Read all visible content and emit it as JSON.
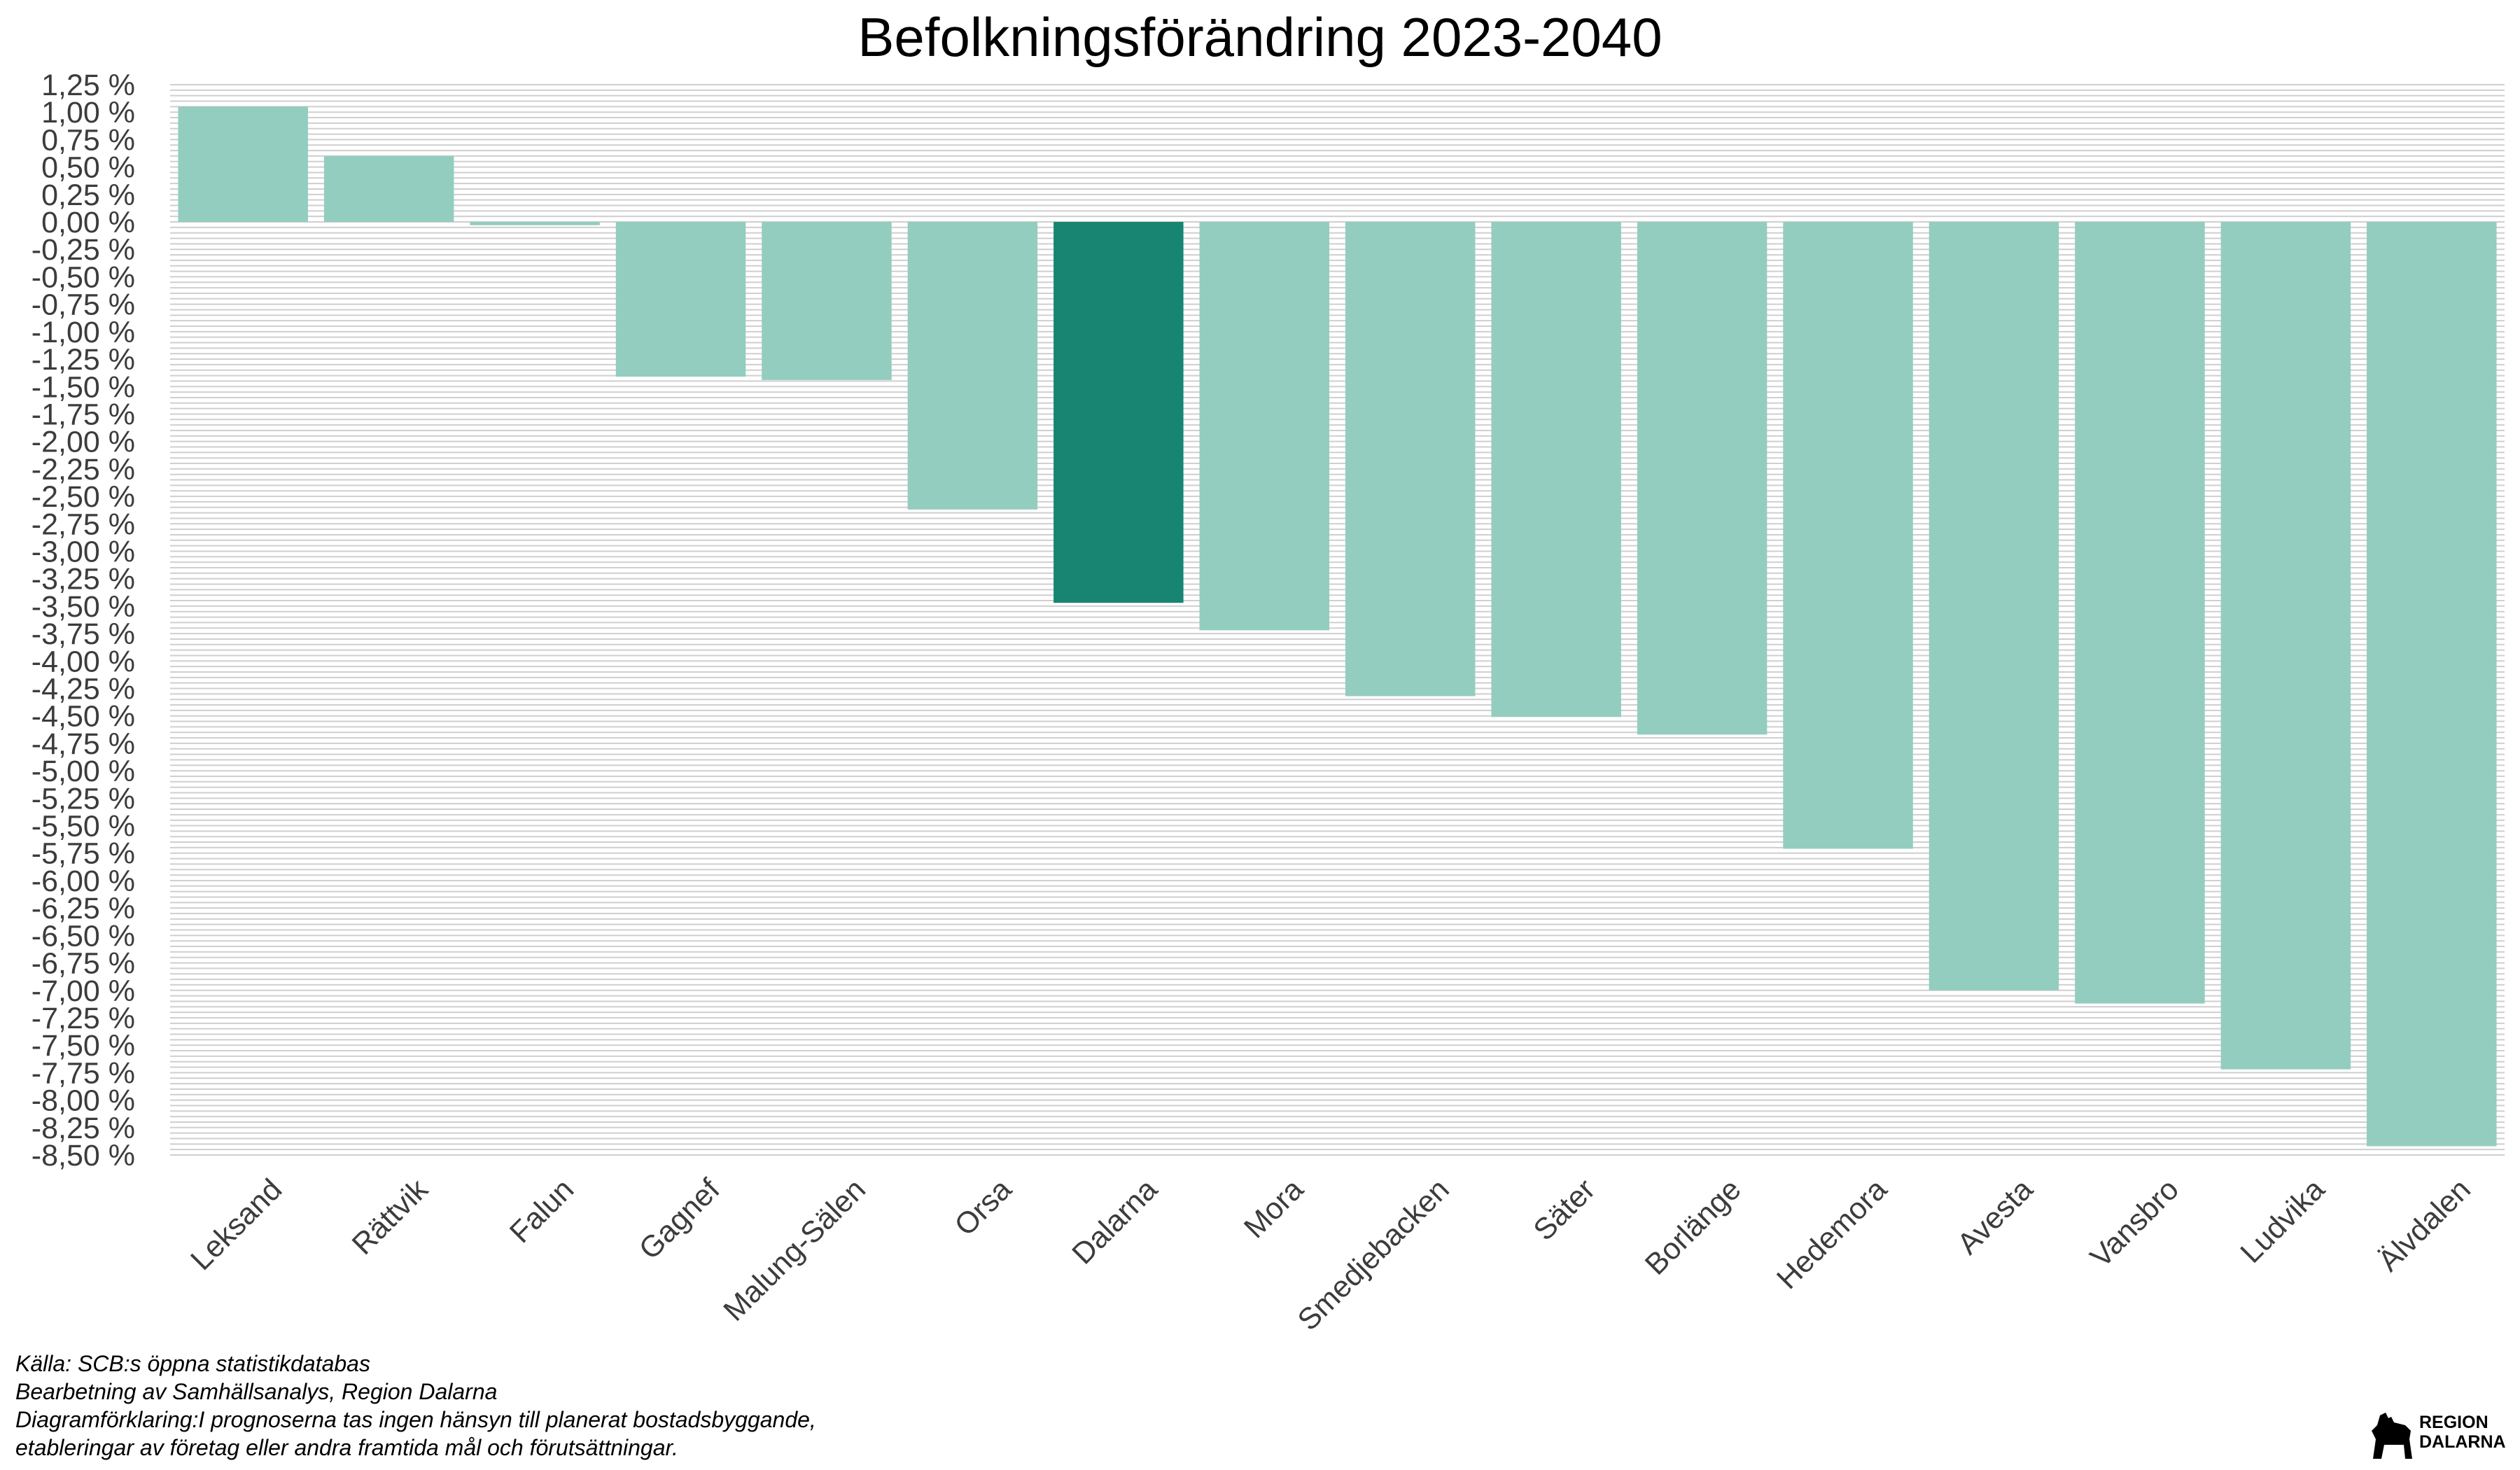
{
  "chart_data": {
    "type": "bar",
    "title": "Befolkningsförändring 2023-2040",
    "xlabel": "",
    "ylabel": "",
    "ylim": [
      -8.5,
      1.25
    ],
    "y_tick_step": 0.25,
    "y_tick_format": "percent-comma-2",
    "grid": "horizontal-minor",
    "categories": [
      "Leksand",
      "Rättvik",
      "Falun",
      "Gagnef",
      "Malung-Sälen",
      "Orsa",
      "Dalarna",
      "Mora",
      "Smedjebacken",
      "Säter",
      "Borlänge",
      "Hedemora",
      "Avesta",
      "Vansbro",
      "Ludvika",
      "Älvdalen"
    ],
    "values": [
      1.05,
      0.6,
      -0.03,
      -1.41,
      -1.44,
      -2.62,
      -3.47,
      -3.72,
      -4.32,
      -4.51,
      -4.67,
      -5.71,
      -7.0,
      -7.12,
      -7.72,
      -8.42
    ],
    "highlight_category": "Dalarna",
    "colors": {
      "bar": "#93cdbf",
      "highlight": "#178571",
      "grid": "#cfcfcf"
    }
  },
  "caption": {
    "line1": "Källa: SCB:s öppna statistikdatabas",
    "line2": "Bearbetning av Samhällsanalys, Region Dalarna",
    "line3": "Diagramförklaring:I prognoserna tas ingen hänsyn till planerat bostadsbyggande,",
    "line4": "etableringar av företag eller andra framtida mål och förutsättningar."
  },
  "logo": {
    "line1": "REGION",
    "line2": "DALARNA",
    "icon": "dala-horse-icon"
  }
}
